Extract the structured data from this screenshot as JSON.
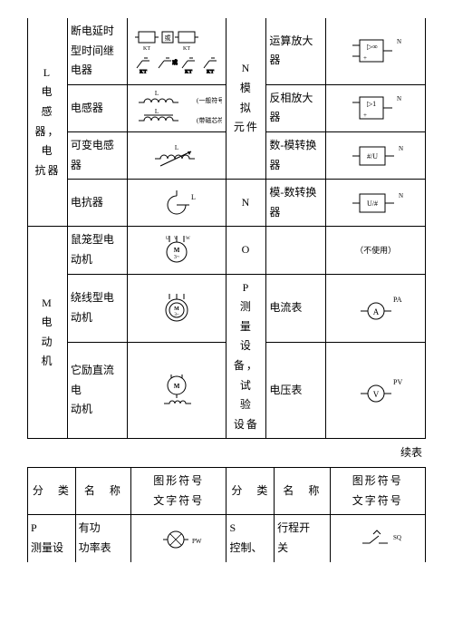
{
  "table1": {
    "cat_L": "L\n电　感\n器，电\n抗器",
    "cat_M": "M\n电　动\n机",
    "cat_N1": "N\n模　拟\n元件",
    "cat_N2": "N",
    "cat_O": "O",
    "cat_P": "P\n测　量\n设备，\n试　验\n设备",
    "r1c1": "断电延时\n型时间继\n电器",
    "r1c2": "运算放大\n器",
    "r2c1": "电感器",
    "r2c2": "反相放大\n器",
    "r3c1": "可变电感\n器",
    "r3c2": "数-模转换\n器",
    "r4c1": "电抗器",
    "r4c2": "模-数转换\n器",
    "r5c1": "鼠笼型电\n动机",
    "r5c2": "（不使用）",
    "r6c1": "绕线型电\n动机",
    "r6c2": "电流表",
    "r7c1": "它励直流\n电\n动机",
    "r7c2": "电压表",
    "sym_note1": "(一般符号)",
    "sym_note2": "(带磁芯符号)",
    "amp_sym": "▷∞",
    "inv_sym": "▷1",
    "dac_sym": "#/U",
    "adc_sym": "U/#",
    "n_lab": "N",
    "pa_lab": "PA",
    "pv_lab": "PV",
    "a_lab": "A",
    "v_lab": "V",
    "m_lab": "M",
    "kt_lab": "KT",
    "or_lab": "或",
    "l_lab": "L"
  },
  "continued": "续表",
  "table2": {
    "h_cat": "分　类",
    "h_name": "名　称",
    "h_sym": "图形符号\n文字符号",
    "cat_P": "P\n测量设",
    "name_P": "有功\n功率表",
    "cat_S": "S\n控制、",
    "name_S": "行程开\n关",
    "pw_lab": "PW"
  },
  "colors": {
    "border": "#000000",
    "bg": "#ffffff",
    "text": "#000000"
  }
}
